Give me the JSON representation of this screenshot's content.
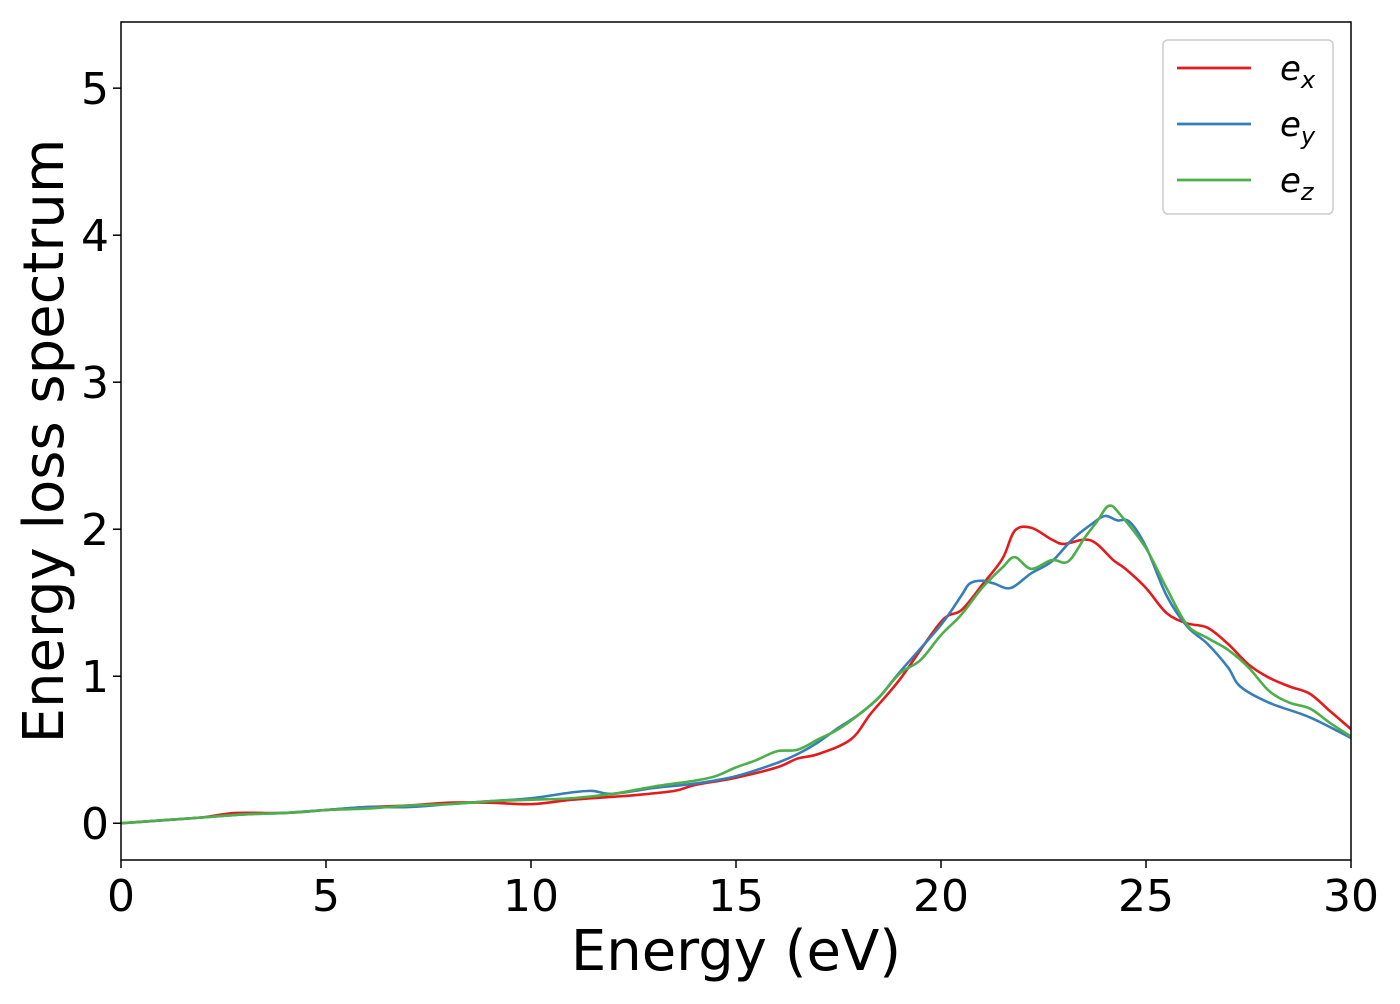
{
  "chart_data": {
    "type": "line",
    "title": "",
    "xlabel": "Energy (eV)",
    "ylabel": "Energy loss spectrum",
    "xlim": [
      0,
      30
    ],
    "ylim": [
      -0.25,
      5.45
    ],
    "xticks": [
      0,
      5,
      10,
      15,
      20,
      25,
      30
    ],
    "yticks": [
      0,
      1,
      2,
      3,
      4,
      5
    ],
    "grid": false,
    "legend_position": "top-right",
    "series": [
      {
        "name": "e_x",
        "legend_base": "e",
        "legend_sub": "x",
        "color": "#e41a1c",
        "points": [
          [
            0,
            0
          ],
          [
            1,
            0.02
          ],
          [
            2,
            0.04
          ],
          [
            2.8,
            0.07
          ],
          [
            4,
            0.07
          ],
          [
            5,
            0.09
          ],
          [
            6,
            0.11
          ],
          [
            7,
            0.12
          ],
          [
            8,
            0.14
          ],
          [
            9,
            0.14
          ],
          [
            10,
            0.13
          ],
          [
            11,
            0.16
          ],
          [
            12,
            0.18
          ],
          [
            12.5,
            0.19
          ],
          [
            13.5,
            0.22
          ],
          [
            14,
            0.26
          ],
          [
            15,
            0.31
          ],
          [
            16,
            0.38
          ],
          [
            16.5,
            0.44
          ],
          [
            17,
            0.47
          ],
          [
            17.8,
            0.57
          ],
          [
            18.3,
            0.75
          ],
          [
            19,
            0.98
          ],
          [
            20,
            1.37
          ],
          [
            20.5,
            1.45
          ],
          [
            21,
            1.62
          ],
          [
            21.5,
            1.8
          ],
          [
            21.8,
            1.99
          ],
          [
            22.2,
            2.01
          ],
          [
            22.7,
            1.93
          ],
          [
            23,
            1.9
          ],
          [
            23.5,
            1.93
          ],
          [
            23.8,
            1.9
          ],
          [
            24.2,
            1.79
          ],
          [
            24.5,
            1.73
          ],
          [
            25,
            1.6
          ],
          [
            25.5,
            1.43
          ],
          [
            26,
            1.36
          ],
          [
            26.5,
            1.33
          ],
          [
            27,
            1.22
          ],
          [
            27.5,
            1.08
          ],
          [
            28,
            0.99
          ],
          [
            28.5,
            0.93
          ],
          [
            29,
            0.88
          ],
          [
            29.5,
            0.76
          ],
          [
            30,
            0.64
          ]
        ]
      },
      {
        "name": "e_y",
        "legend_base": "e",
        "legend_sub": "y",
        "color": "#377eb8",
        "points": [
          [
            0,
            0
          ],
          [
            1,
            0.02
          ],
          [
            2,
            0.04
          ],
          [
            3,
            0.06
          ],
          [
            4,
            0.07
          ],
          [
            5,
            0.09
          ],
          [
            6,
            0.11
          ],
          [
            7,
            0.11
          ],
          [
            8,
            0.13
          ],
          [
            9,
            0.15
          ],
          [
            10,
            0.17
          ],
          [
            11,
            0.21
          ],
          [
            11.5,
            0.22
          ],
          [
            12,
            0.2
          ],
          [
            13,
            0.24
          ],
          [
            14,
            0.27
          ],
          [
            15,
            0.32
          ],
          [
            16,
            0.41
          ],
          [
            16.5,
            0.47
          ],
          [
            17,
            0.55
          ],
          [
            17.5,
            0.65
          ],
          [
            18,
            0.74
          ],
          [
            18.5,
            0.86
          ],
          [
            19,
            1.03
          ],
          [
            20,
            1.35
          ],
          [
            20.5,
            1.55
          ],
          [
            20.7,
            1.63
          ],
          [
            21,
            1.65
          ],
          [
            21.3,
            1.63
          ],
          [
            21.7,
            1.6
          ],
          [
            22.2,
            1.7
          ],
          [
            22.7,
            1.78
          ],
          [
            23.2,
            1.93
          ],
          [
            23.7,
            2.04
          ],
          [
            24,
            2.09
          ],
          [
            24.3,
            2.06
          ],
          [
            24.6,
            2.05
          ],
          [
            25,
            1.88
          ],
          [
            25.5,
            1.55
          ],
          [
            26,
            1.34
          ],
          [
            26.5,
            1.22
          ],
          [
            27,
            1.06
          ],
          [
            27.3,
            0.93
          ],
          [
            28,
            0.82
          ],
          [
            29,
            0.72
          ],
          [
            30,
            0.58
          ]
        ]
      },
      {
        "name": "e_z",
        "legend_base": "e",
        "legend_sub": "z",
        "color": "#4daf4a",
        "points": [
          [
            0,
            0
          ],
          [
            1,
            0.02
          ],
          [
            2,
            0.04
          ],
          [
            3,
            0.06
          ],
          [
            4,
            0.07
          ],
          [
            5,
            0.09
          ],
          [
            6,
            0.1
          ],
          [
            7,
            0.12
          ],
          [
            8,
            0.13
          ],
          [
            9,
            0.15
          ],
          [
            10,
            0.16
          ],
          [
            11,
            0.17
          ],
          [
            12,
            0.2
          ],
          [
            13,
            0.25
          ],
          [
            14,
            0.29
          ],
          [
            14.5,
            0.32
          ],
          [
            15,
            0.38
          ],
          [
            15.5,
            0.43
          ],
          [
            16,
            0.49
          ],
          [
            16.5,
            0.5
          ],
          [
            17,
            0.57
          ],
          [
            17.5,
            0.64
          ],
          [
            18,
            0.74
          ],
          [
            18.5,
            0.86
          ],
          [
            19,
            1.02
          ],
          [
            19.5,
            1.11
          ],
          [
            20,
            1.28
          ],
          [
            20.5,
            1.42
          ],
          [
            21,
            1.6
          ],
          [
            21.5,
            1.74
          ],
          [
            21.8,
            1.81
          ],
          [
            22.2,
            1.73
          ],
          [
            22.7,
            1.79
          ],
          [
            23.1,
            1.78
          ],
          [
            23.5,
            1.94
          ],
          [
            23.8,
            2.05
          ],
          [
            24.1,
            2.16
          ],
          [
            24.4,
            2.09
          ],
          [
            25,
            1.87
          ],
          [
            25.5,
            1.6
          ],
          [
            26,
            1.35
          ],
          [
            26.5,
            1.26
          ],
          [
            27,
            1.18
          ],
          [
            27.5,
            1.06
          ],
          [
            28,
            0.9
          ],
          [
            28.5,
            0.82
          ],
          [
            29,
            0.78
          ],
          [
            29.5,
            0.68
          ],
          [
            30,
            0.59
          ]
        ]
      }
    ]
  }
}
